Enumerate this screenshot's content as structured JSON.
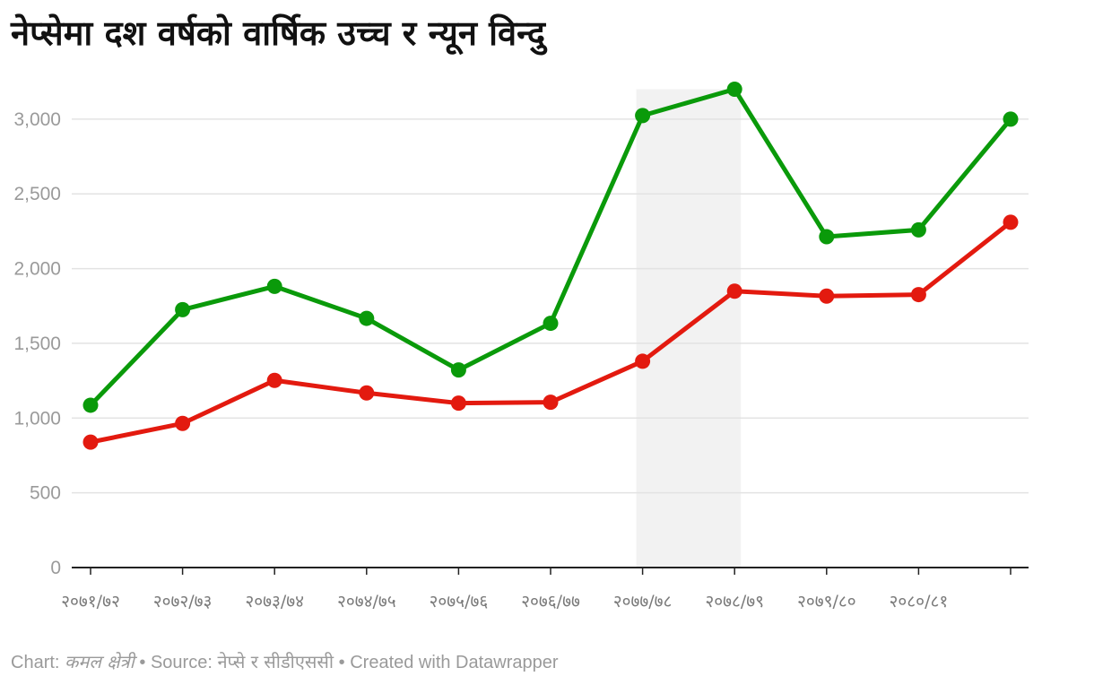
{
  "chart_data": {
    "type": "line",
    "title": "नेप्सेमा दश वर्षको वार्षिक उच्च र न्यून विन्दु",
    "categories": [
      "२०७१/७२",
      "२०७२/७३",
      "२०७३/७४",
      "२०७४/७५",
      "२०७५/७६",
      "२०७६/७७",
      "२०७७/७८",
      "२०७८/७९",
      "२०७९/८०",
      "२०८०/८१",
      ""
    ],
    "series": [
      {
        "values": [
          1086,
          1725,
          1881,
          1667,
          1322,
          1634,
          3024,
          3200,
          2213,
          2259,
          3000
        ],
        "color": "#0a9a0a"
      },
      {
        "values": [
          839,
          964,
          1252,
          1168,
          1100,
          1106,
          1380,
          1849,
          1816,
          1826,
          2310
        ],
        "color": "#e31a0f"
      }
    ],
    "ylim": [
      0,
      3200
    ],
    "yticks": [
      0,
      500,
      1000,
      1500,
      2000,
      2500,
      3000
    ],
    "ytick_labels": [
      "0",
      "500",
      "1,000",
      "1,500",
      "2,000",
      "2,500",
      "3,000"
    ],
    "highlight_range": {
      "from_index": 6,
      "to_index": 7,
      "color": "#f2f2f2"
    },
    "grid": true
  },
  "footer": {
    "chart_prefix": "Chart: ",
    "author": "कमल क्षेत्री",
    "source_prefix": " • Source: ",
    "source": "नेप्से र सीडीएससी",
    "created_with": " • Created with Datawrapper"
  }
}
